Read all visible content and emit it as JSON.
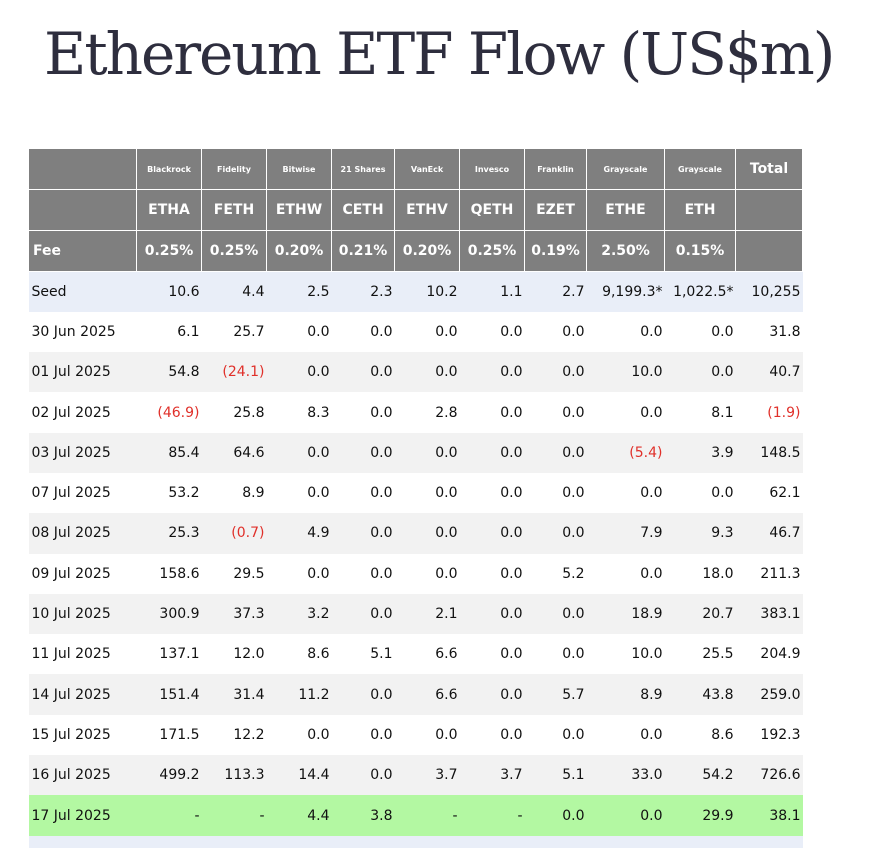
{
  "page": {
    "title": "Ethereum ETF Flow (US$m)"
  },
  "table": {
    "issuers": [
      "Blackrock",
      "Fidelity",
      "Bitwise",
      "21 Shares",
      "VanEck",
      "Invesco",
      "Franklin",
      "Grayscale",
      "Grayscale"
    ],
    "total_label": "Total",
    "tickers": [
      "ETHA",
      "FETH",
      "ETHW",
      "CETH",
      "ETHV",
      "QETH",
      "EZET",
      "ETHE",
      "ETH"
    ],
    "fee_label": "Fee",
    "fees": [
      "0.25%",
      "0.25%",
      "0.20%",
      "0.21%",
      "0.20%",
      "0.25%",
      "0.19%",
      "2.50%",
      "0.15%"
    ],
    "rows": [
      {
        "date": "Seed",
        "values": [
          "10.6",
          "4.4",
          "2.5",
          "2.3",
          "10.2",
          "1.1",
          "2.7",
          "9,199.3*",
          "1,022.5*"
        ],
        "total": "10,255"
      },
      {
        "date": "30 Jun 2025",
        "values": [
          "6.1",
          "25.7",
          "0.0",
          "0.0",
          "0.0",
          "0.0",
          "0.0",
          "0.0",
          "0.0"
        ],
        "total": "31.8"
      },
      {
        "date": "01 Jul 2025",
        "values": [
          "54.8",
          "(24.1)",
          "0.0",
          "0.0",
          "0.0",
          "0.0",
          "0.0",
          "10.0",
          "0.0"
        ],
        "total": "40.7"
      },
      {
        "date": "02 Jul 2025",
        "values": [
          "(46.9)",
          "25.8",
          "8.3",
          "0.0",
          "2.8",
          "0.0",
          "0.0",
          "0.0",
          "8.1"
        ],
        "total": "(1.9)"
      },
      {
        "date": "03 Jul 2025",
        "values": [
          "85.4",
          "64.6",
          "0.0",
          "0.0",
          "0.0",
          "0.0",
          "0.0",
          "(5.4)",
          "3.9"
        ],
        "total": "148.5"
      },
      {
        "date": "07 Jul 2025",
        "values": [
          "53.2",
          "8.9",
          "0.0",
          "0.0",
          "0.0",
          "0.0",
          "0.0",
          "0.0",
          "0.0"
        ],
        "total": "62.1"
      },
      {
        "date": "08 Jul 2025",
        "values": [
          "25.3",
          "(0.7)",
          "4.9",
          "0.0",
          "0.0",
          "0.0",
          "0.0",
          "7.9",
          "9.3"
        ],
        "total": "46.7"
      },
      {
        "date": "09 Jul 2025",
        "values": [
          "158.6",
          "29.5",
          "0.0",
          "0.0",
          "0.0",
          "0.0",
          "5.2",
          "0.0",
          "18.0"
        ],
        "total": "211.3"
      },
      {
        "date": "10 Jul 2025",
        "values": [
          "300.9",
          "37.3",
          "3.2",
          "0.0",
          "2.1",
          "0.0",
          "0.0",
          "18.9",
          "20.7"
        ],
        "total": "383.1"
      },
      {
        "date": "11 Jul 2025",
        "values": [
          "137.1",
          "12.0",
          "8.6",
          "5.1",
          "6.6",
          "0.0",
          "0.0",
          "10.0",
          "25.5"
        ],
        "total": "204.9"
      },
      {
        "date": "14 Jul 2025",
        "values": [
          "151.4",
          "31.4",
          "11.2",
          "0.0",
          "6.6",
          "0.0",
          "5.7",
          "8.9",
          "43.8"
        ],
        "total": "259.0"
      },
      {
        "date": "15 Jul 2025",
        "values": [
          "171.5",
          "12.2",
          "0.0",
          "0.0",
          "0.0",
          "0.0",
          "0.0",
          "0.0",
          "8.6"
        ],
        "total": "192.3"
      },
      {
        "date": "16 Jul 2025",
        "values": [
          "499.2",
          "113.3",
          "14.4",
          "0.0",
          "3.7",
          "3.7",
          "5.1",
          "33.0",
          "54.2"
        ],
        "total": "726.6"
      },
      {
        "date": "17 Jul 2025",
        "values": [
          "-",
          "-",
          "4.4",
          "3.8",
          "-",
          "-",
          "0.0",
          "0.0",
          "29.9"
        ],
        "total": "38.1"
      }
    ],
    "colors": {
      "header_bg": "#7f7f7f",
      "seed_bg": "#e9eef8",
      "stripe_bg": "#f2f2f2",
      "current_bg": "#b3f8a2",
      "negative_text": "#e0302a"
    }
  }
}
